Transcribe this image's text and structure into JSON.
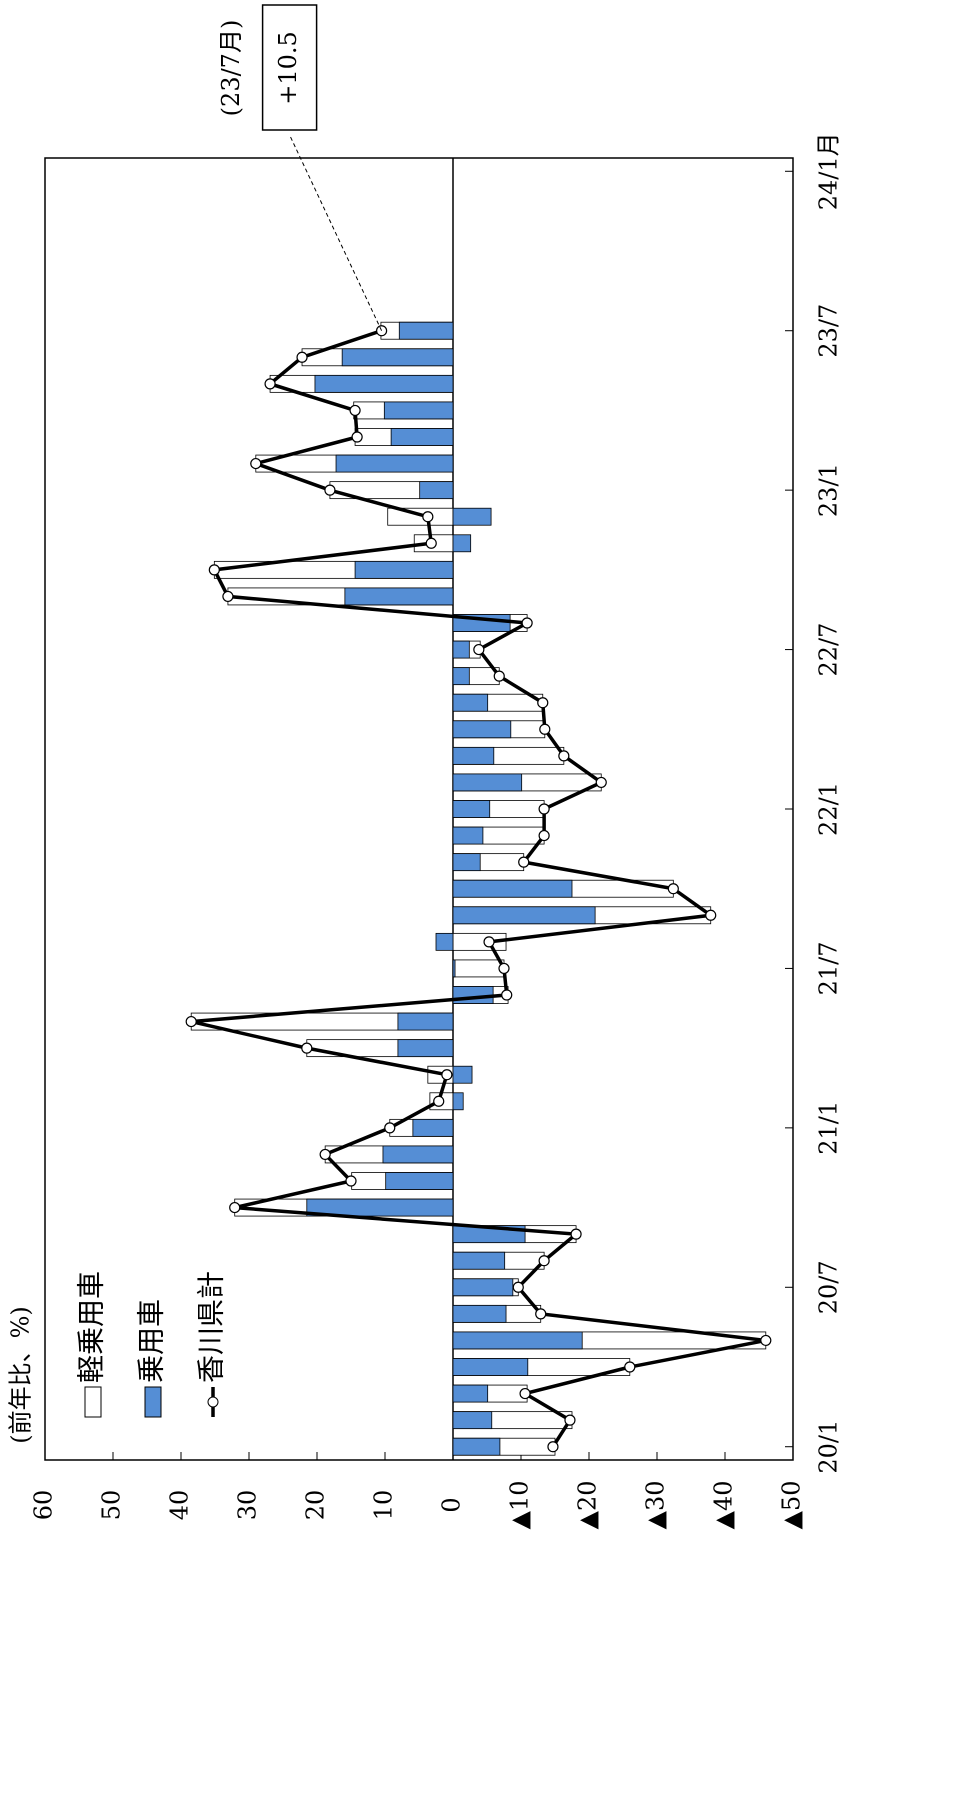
{
  "chart_data": {
    "type": "bar",
    "y_label": "(前年比、%)",
    "annotation": "(23/7月)",
    "categories": [
      "20/1",
      null,
      null,
      null,
      null,
      null,
      "20/7",
      null,
      null,
      null,
      null,
      null,
      "21/1",
      null,
      null,
      null,
      null,
      null,
      "21/7",
      null,
      null,
      null,
      null,
      null,
      "22/1",
      null,
      null,
      null,
      null,
      null,
      "22/7",
      null,
      null,
      null,
      null,
      null,
      "23/1",
      null,
      null,
      null,
      null,
      null,
      "23/7",
      null,
      null,
      null,
      null,
      null,
      "24/1月"
    ],
    "series": [
      {
        "name": "軽乗用車",
        "type": "bar",
        "color": "#ffffff",
        "values": [
          -15.0,
          -17.5,
          -10.9,
          -26.0,
          -46.0,
          -12.9,
          -9.6,
          -13.4,
          -18.1,
          32.1,
          14.9,
          18.8,
          9.3,
          3.4,
          3.7,
          21.5,
          38.5,
          -8.1,
          -7.5,
          -7.8,
          -37.9,
          -32.4,
          -10.4,
          -13.4,
          -13.4,
          -21.8,
          -16.3,
          -13.5,
          -13.2,
          -6.8,
          -4.0,
          -10.9,
          33.1,
          35.1,
          5.7,
          9.6,
          18.1,
          29.0,
          14.4,
          14.6,
          26.9,
          22.2,
          10.6,
          null,
          null,
          null,
          null,
          null,
          null
        ]
      },
      {
        "name": "乗用車",
        "type": "bar",
        "color": "#558ed5",
        "values": [
          -6.9,
          -5.7,
          -5.1,
          -11.0,
          -19.0,
          -7.8,
          -8.8,
          -7.6,
          -10.6,
          21.5,
          9.9,
          10.3,
          5.9,
          -1.5,
          -2.8,
          8.1,
          8.1,
          -5.9,
          -0.3,
          2.5,
          -20.9,
          -17.5,
          -4.0,
          -4.4,
          -5.4,
          -10.1,
          -6.0,
          -8.5,
          -5.1,
          -2.4,
          -2.4,
          -8.4,
          15.9,
          14.4,
          -2.6,
          -5.6,
          4.9,
          17.2,
          9.1,
          10.1,
          20.3,
          16.3,
          7.9,
          null,
          null,
          null,
          null,
          null,
          null
        ]
      },
      {
        "name": "香川県計",
        "type": "line",
        "color": "#000000",
        "values": [
          -14.7,
          -17.2,
          -10.6,
          -26.0,
          -46.0,
          -12.9,
          -9.6,
          -13.4,
          -18.1,
          32.1,
          15.0,
          18.8,
          9.3,
          2.1,
          0.9,
          21.5,
          38.5,
          -7.9,
          -7.5,
          -5.3,
          -37.9,
          -32.4,
          -10.4,
          -13.4,
          -13.4,
          -21.8,
          -16.3,
          -13.5,
          -13.2,
          -6.8,
          -3.8,
          -10.9,
          33.1,
          35.1,
          3.2,
          3.7,
          18.1,
          29.0,
          14.1,
          14.4,
          26.9,
          22.2,
          10.5,
          null,
          null,
          null,
          null,
          null,
          null
        ],
        "value_labels": [
          null,
          null,
          null,
          null,
          null,
          null,
          null,
          null,
          null,
          null,
          null,
          null,
          null,
          null,
          null,
          null,
          null,
          null,
          null,
          null,
          null,
          null,
          null,
          null,
          null,
          null,
          null,
          null,
          null,
          null,
          null,
          null,
          null,
          null,
          null,
          null,
          null,
          null,
          null,
          null,
          null,
          null,
          "+10.5",
          null,
          null,
          null,
          null,
          null,
          null
        ]
      }
    ],
    "ylim": [
      -50,
      60
    ],
    "yticks": [
      {
        "value": -50,
        "label": "▲50"
      },
      {
        "value": -40,
        "label": "▲40"
      },
      {
        "value": -30,
        "label": "▲30"
      },
      {
        "value": -20,
        "label": "▲20"
      },
      {
        "value": -10,
        "label": "▲10"
      },
      0,
      10,
      20,
      30,
      40,
      50,
      60
    ]
  }
}
